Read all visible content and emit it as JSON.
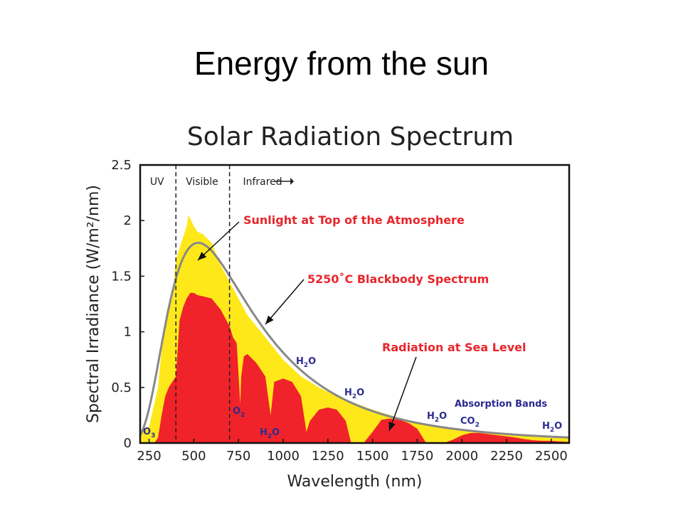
{
  "slide": {
    "title": "Energy from the sun"
  },
  "chart_data": {
    "type": "area",
    "title": "Solar Radiation Spectrum",
    "xlabel": "Wavelength (nm)",
    "ylabel": "Spectral Irradiance (W/m²/nm)",
    "xlim": [
      200,
      2600
    ],
    "ylim": [
      0,
      2.5
    ],
    "xticks": [
      250,
      500,
      750,
      1000,
      1250,
      1500,
      1750,
      2000,
      2250,
      2500
    ],
    "yticks": [
      0,
      0.5,
      1,
      1.5,
      2,
      2.5
    ],
    "ytick_labels": [
      "0",
      "0.5",
      "1",
      "1.5",
      "2",
      "2.5"
    ],
    "regions": [
      {
        "label": "UV",
        "boundary_nm": 400
      },
      {
        "label": "Visible",
        "boundary_nm": 700
      },
      {
        "label": "Infrared"
      }
    ],
    "series": [
      {
        "name": "Sunlight at Top of the Atmosphere",
        "color": "#ffe81a",
        "x": [
          200,
          250,
          300,
          330,
          350,
          380,
          400,
          420,
          440,
          460,
          470,
          480,
          500,
          520,
          550,
          600,
          650,
          700,
          750,
          800,
          900,
          1000,
          1100,
          1200,
          1300,
          1400,
          1500,
          1600,
          1700,
          1800,
          1900,
          2000,
          2100,
          2200,
          2300,
          2400,
          2500,
          2600
        ],
        "y": [
          0.08,
          0.15,
          0.5,
          1.0,
          1.2,
          1.3,
          1.65,
          1.75,
          1.85,
          1.95,
          2.05,
          2.02,
          1.95,
          1.9,
          1.88,
          1.8,
          1.6,
          1.45,
          1.3,
          1.15,
          0.95,
          0.75,
          0.6,
          0.5,
          0.42,
          0.36,
          0.3,
          0.25,
          0.2,
          0.16,
          0.14,
          0.12,
          0.1,
          0.09,
          0.07,
          0.06,
          0.05,
          0.045
        ]
      },
      {
        "name": "Radiation at Sea Level",
        "color": "#f0232a",
        "x": [
          200,
          280,
          300,
          320,
          340,
          360,
          380,
          400,
          420,
          440,
          460,
          480,
          500,
          520,
          550,
          600,
          650,
          700,
          720,
          740,
          760,
          765,
          780,
          800,
          850,
          900,
          930,
          950,
          1000,
          1050,
          1100,
          1130,
          1150,
          1200,
          1250,
          1300,
          1350,
          1380,
          1400,
          1450,
          1500,
          1550,
          1600,
          1650,
          1700,
          1750,
          1800,
          1850,
          1900,
          1950,
          2000,
          2050,
          2100,
          2150,
          2200,
          2250,
          2300,
          2350,
          2400,
          2450,
          2500,
          2550,
          2600
        ],
        "y": [
          0,
          0,
          0.05,
          0.25,
          0.42,
          0.5,
          0.55,
          0.6,
          1.1,
          1.22,
          1.3,
          1.35,
          1.35,
          1.33,
          1.32,
          1.3,
          1.2,
          1.05,
          0.95,
          0.9,
          0.35,
          0.6,
          0.78,
          0.8,
          0.72,
          0.6,
          0.25,
          0.55,
          0.58,
          0.55,
          0.42,
          0.1,
          0.2,
          0.3,
          0.32,
          0.3,
          0.2,
          0.0,
          0.0,
          0.0,
          0.1,
          0.21,
          0.22,
          0.21,
          0.18,
          0.13,
          0.0,
          0.0,
          0.0,
          0.03,
          0.07,
          0.09,
          0.09,
          0.08,
          0.07,
          0.06,
          0.05,
          0.035,
          0.025,
          0.02,
          0.02,
          0.015,
          0.01
        ]
      },
      {
        "name": "5250˚C Blackbody Spectrum",
        "color": "#888888",
        "temperature_c": 5250,
        "peak_y": 1.8
      }
    ],
    "annotations": [
      {
        "text": "Sunlight at Top of the Atmosphere",
        "color": "#e8262b"
      },
      {
        "text": "5250˚C Blackbody Spectrum",
        "color": "#e8262b"
      },
      {
        "text": "Radiation at Sea Level",
        "color": "#e8262b"
      }
    ],
    "absorption_bands": [
      {
        "label": "O",
        "sub": "3",
        "color": "#2b2b8f"
      },
      {
        "label": "O",
        "sub": "2",
        "color": "#2b2b8f"
      },
      {
        "label": "H",
        "sub": "2",
        "suffix": "O",
        "color": "#2b2b8f"
      },
      {
        "label": "H",
        "sub": "2",
        "suffix": "O",
        "color": "#2b2b8f"
      },
      {
        "label": "H",
        "sub": "2",
        "suffix": "O",
        "color": "#2b2b8f"
      },
      {
        "label": "H",
        "sub": "2",
        "suffix": "O",
        "color": "#2b2b8f"
      },
      {
        "label": "CO",
        "sub": "2",
        "color": "#2b2b8f"
      },
      {
        "label": "H",
        "sub": "2",
        "suffix": "O",
        "color": "#2b2b8f"
      }
    ],
    "absorption_bands_title": "Absorption Bands"
  }
}
